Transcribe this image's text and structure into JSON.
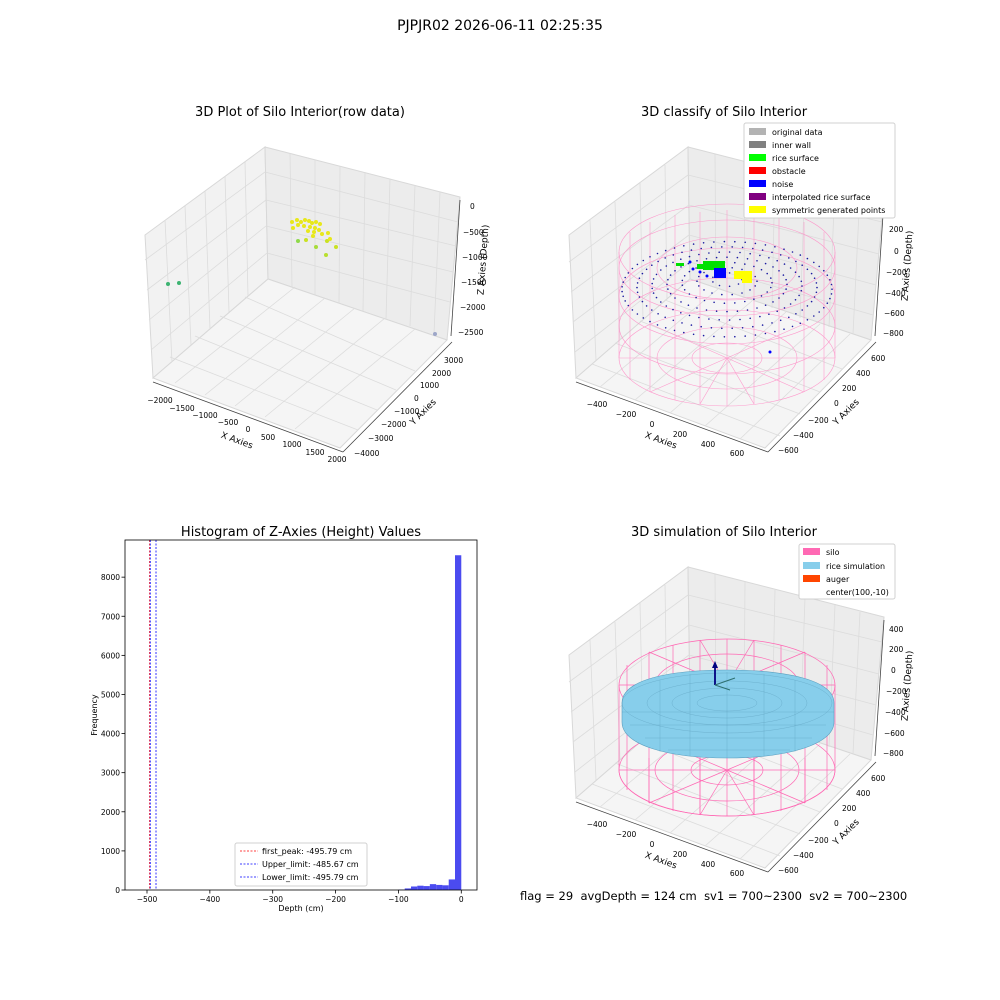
{
  "suptitle": "PJPJR02 2026-06-11 02:25:35",
  "footer": {
    "flag": "flag = 29",
    "avg_depth": "avgDepth = 124 cm",
    "sv1": "sv1 = 700~2300",
    "sv2": "sv2 = 700~2300"
  },
  "colors": {
    "original": "#b3b3b3",
    "inner_wall": "#808080",
    "rice_surface": "#00ff00",
    "obstacle": "#ff0000",
    "noise": "#0000ff",
    "interpolated": "#800080",
    "symmetric": "#ffff00",
    "silo": "#ff69b4",
    "rice_sim": "#87ceeb",
    "auger": "#ff4500",
    "hist": "#4b4bf0",
    "first_peak": "#ff0000",
    "limits": "#0000ff",
    "raw_points": "#e8e81a",
    "raw_green": "#3cb371"
  },
  "chart_data": [
    {
      "type": "scatter",
      "projection": "3d",
      "title": "3D Plot of Silo Interior(row data)",
      "xlabel": "X Axies",
      "ylabel": "Y Axies",
      "zlabel": "Z Axies (Depth)",
      "x_ticks": [
        "−2000",
        "−1500",
        "−1000",
        "−500",
        "0",
        "500",
        "1000",
        "1500",
        "2000"
      ],
      "y_ticks": [
        "−4000",
        "−3000",
        "−2000",
        "−1000",
        "0",
        "1000",
        "2000",
        "3000"
      ],
      "z_ticks": [
        "0",
        "−500",
        "−1000",
        "−1500",
        "−2000",
        "−2500"
      ],
      "xlim": [
        -2000,
        2000
      ],
      "ylim": [
        -4000,
        3000
      ],
      "zlim": [
        -2600,
        0
      ]
    },
    {
      "type": "scatter",
      "projection": "3d",
      "title": "3D classify of Silo Interior",
      "xlabel": "X Axies",
      "ylabel": "Y Axies",
      "zlabel": "Z Axies (Depth)",
      "x_ticks": [
        "−400",
        "−200",
        "0",
        "200",
        "400",
        "600"
      ],
      "y_ticks": [
        "−600",
        "−400",
        "−200",
        "0",
        "200",
        "400",
        "600"
      ],
      "z_ticks": [
        "200",
        "0",
        "−200",
        "−400",
        "−600",
        "−800"
      ],
      "legend": [
        "original data",
        "inner wall",
        "rice surface",
        "obstacle",
        "noise",
        "interpolated rice surface",
        "symmetric generated points"
      ],
      "legend_position": "top-right"
    },
    {
      "type": "bar",
      "title": "Histogram of Z-Axies (Height) Values",
      "xlabel": "Depth (cm)",
      "ylabel": "Frequency",
      "xlim": [
        -535,
        25
      ],
      "ylim": [
        0,
        8950
      ],
      "x_ticks": [
        -500,
        -400,
        -300,
        -200,
        -100,
        0
      ],
      "y_ticks": [
        0,
        1000,
        2000,
        3000,
        4000,
        5000,
        6000,
        7000,
        8000
      ],
      "x_tick_labels": [
        "−500",
        "−400",
        "−300",
        "−200",
        "−100",
        "0"
      ],
      "y_tick_labels": [
        "0",
        "1000",
        "2000",
        "3000",
        "4000",
        "5000",
        "6000",
        "7000",
        "8000"
      ],
      "bins": [
        {
          "x0": -100,
          "x1": -90,
          "value": 10
        },
        {
          "x0": -90,
          "x1": -80,
          "value": 40
        },
        {
          "x0": -80,
          "x1": -70,
          "value": 90
        },
        {
          "x0": -70,
          "x1": -60,
          "value": 110
        },
        {
          "x0": -60,
          "x1": -50,
          "value": 100
        },
        {
          "x0": -50,
          "x1": -40,
          "value": 150
        },
        {
          "x0": -40,
          "x1": -30,
          "value": 130
        },
        {
          "x0": -30,
          "x1": -20,
          "value": 120
        },
        {
          "x0": -20,
          "x1": -10,
          "value": 270
        },
        {
          "x0": -10,
          "x1": 0,
          "value": 8560
        }
      ],
      "vlines": [
        {
          "name": "first_peak: -495.79 cm",
          "x": -495.79,
          "color": "#ff0000"
        },
        {
          "name": "Upper_limit: -485.67 cm",
          "x": -485.67,
          "color": "#0000ff"
        },
        {
          "name": "Lower_limit: -495.79 cm",
          "x": -495.79,
          "color": "#0000ff"
        }
      ],
      "legend_position": "lower-center"
    },
    {
      "type": "surface",
      "projection": "3d",
      "title": "3D simulation of Silo Interior",
      "xlabel": "X Axies",
      "ylabel": "Y Axies",
      "zlabel": "Z Axies (Depth)",
      "x_ticks": [
        "−400",
        "−200",
        "0",
        "200",
        "400",
        "600"
      ],
      "y_ticks": [
        "−600",
        "−400",
        "−200",
        "0",
        "200",
        "400",
        "600"
      ],
      "z_ticks": [
        "400",
        "200",
        "0",
        "−200",
        "−400",
        "−600",
        "−800"
      ],
      "legend": [
        "silo",
        "rice simulation",
        "auger",
        "center(100,-10)"
      ],
      "legend_position": "top-right"
    }
  ]
}
